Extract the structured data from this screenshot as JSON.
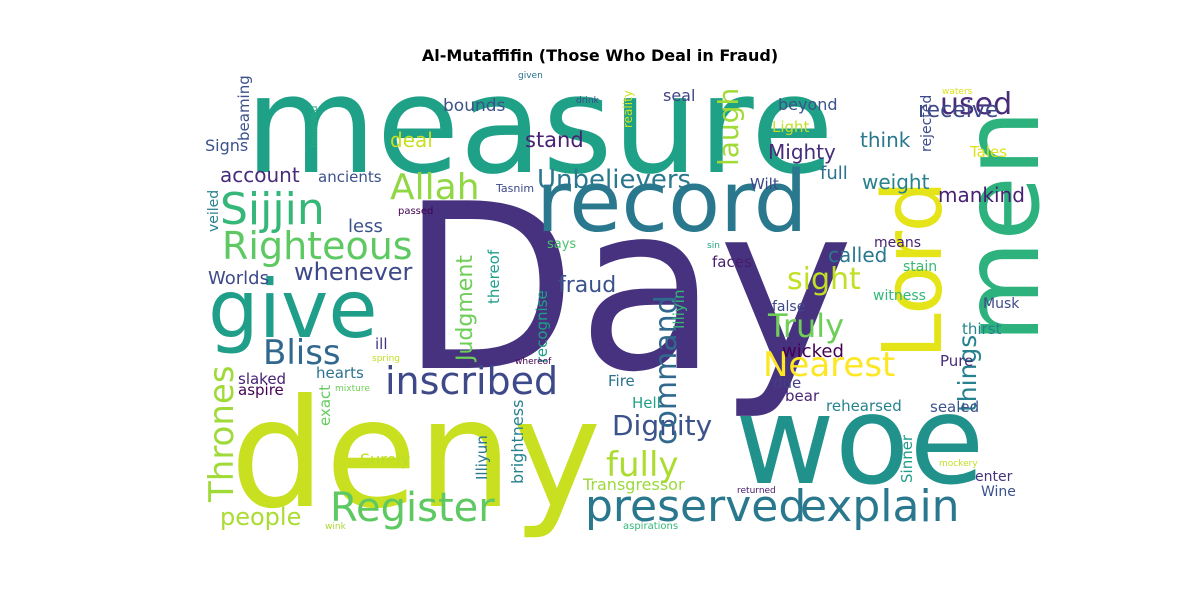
{
  "title": "Al-Mutaffifin (Those Who Deal in Fraud)",
  "words": [
    {
      "t": "Day",
      "c": "#46327e"
    },
    {
      "t": "measure",
      "c": "#1fa187"
    },
    {
      "t": "deny",
      "c": "#c8e020"
    },
    {
      "t": "woe",
      "c": "#21918c"
    },
    {
      "t": "record",
      "c": "#2a788e"
    },
    {
      "t": "men",
      "c": "#2db27d"
    },
    {
      "t": "give",
      "c": "#1f9e89"
    },
    {
      "t": "Lord",
      "c": "#e5e419"
    },
    {
      "t": "preserved",
      "c": "#2a788e"
    },
    {
      "t": "explain",
      "c": "#2a788e"
    },
    {
      "t": "inscribed",
      "c": "#3e4989"
    },
    {
      "t": "Register",
      "c": "#5ec962"
    },
    {
      "t": "Sijjin",
      "c": "#35b779"
    },
    {
      "t": "Righteous",
      "c": "#5ec962"
    },
    {
      "t": "Allah",
      "c": "#90d743"
    },
    {
      "t": "Thrones",
      "c": "#a0da39"
    },
    {
      "t": "Bliss",
      "c": "#31688e"
    },
    {
      "t": "Nearest",
      "c": "#fde725"
    },
    {
      "t": "Truly",
      "c": "#6ece58"
    },
    {
      "t": "fully",
      "c": "#addc30"
    },
    {
      "t": "Dignity",
      "c": "#3b528b"
    },
    {
      "t": "command",
      "c": "#31688e"
    },
    {
      "t": "Unbelievers",
      "c": "#2a788e"
    },
    {
      "t": "used",
      "c": "#472c7a"
    },
    {
      "t": "laugh",
      "c": "#a2da37"
    },
    {
      "t": "things",
      "c": "#26828e"
    },
    {
      "t": "sight",
      "c": "#c0df25"
    },
    {
      "t": "whenever",
      "c": "#3e4989"
    },
    {
      "t": "Judgment",
      "c": "#6ece58"
    },
    {
      "t": "people",
      "c": "#aadc32"
    },
    {
      "t": "fraud",
      "c": "#3b528b"
    },
    {
      "t": "receive",
      "c": "#3e4989"
    },
    {
      "t": "stand",
      "c": "#482173"
    },
    {
      "t": "deal",
      "c": "#c8e020"
    },
    {
      "t": "account",
      "c": "#472c7a"
    },
    {
      "t": "Mighty",
      "c": "#472c7a"
    },
    {
      "t": "weight",
      "c": "#26828e"
    },
    {
      "t": "think",
      "c": "#2a788e"
    },
    {
      "t": "mankind",
      "c": "#482173"
    },
    {
      "t": "called",
      "c": "#2a788e"
    },
    {
      "t": "full",
      "c": "#2c728e"
    },
    {
      "t": "wicked",
      "c": "#440154"
    },
    {
      "t": "Worlds",
      "c": "#3e4989"
    },
    {
      "t": "less",
      "c": "#3b528b"
    },
    {
      "t": "bounds",
      "c": "#3b528b"
    },
    {
      "t": "beyond",
      "c": "#3b528b"
    },
    {
      "t": "seal",
      "c": "#414487"
    },
    {
      "t": "Surely",
      "c": "#bddf26"
    },
    {
      "t": "Transgressor",
      "c": "#9bd93c"
    },
    {
      "t": "Signs",
      "c": "#3b528b"
    },
    {
      "t": "ancients",
      "c": "#3b528b"
    },
    {
      "t": "Tales",
      "c": "#dde318"
    },
    {
      "t": "Light",
      "c": "#c2df23"
    },
    {
      "t": "slaked",
      "c": "#482173"
    },
    {
      "t": "aspire",
      "c": "#440154"
    },
    {
      "t": "hearts",
      "c": "#2c728e"
    },
    {
      "t": "ill",
      "c": "#46337e"
    },
    {
      "t": "exact",
      "c": "#65cb5e"
    },
    {
      "t": "brightness",
      "c": "#26828e"
    },
    {
      "t": "Illiyun",
      "c": "#2a788e"
    },
    {
      "t": "Illiyin",
      "c": "#35b779"
    },
    {
      "t": "recognise",
      "c": "#1fa187"
    },
    {
      "t": "thereof",
      "c": "#1f9e89"
    },
    {
      "t": "Fire",
      "c": "#2c728e"
    },
    {
      "t": "Hell",
      "c": "#1fa187"
    },
    {
      "t": "bear",
      "c": "#482576"
    },
    {
      "t": "rehearsed",
      "c": "#25838e"
    },
    {
      "t": "due",
      "c": "#433e85"
    },
    {
      "t": "sealed",
      "c": "#3b528b"
    },
    {
      "t": "Pure",
      "c": "#472d7b"
    },
    {
      "t": "thirst",
      "c": "#25838e"
    },
    {
      "t": "Musk",
      "c": "#3e4989"
    },
    {
      "t": "witness",
      "c": "#35b779"
    },
    {
      "t": "stain",
      "c": "#37b878"
    },
    {
      "t": "means",
      "c": "#482173"
    },
    {
      "t": "false",
      "c": "#3e4989"
    },
    {
      "t": "faces",
      "c": "#481b6d"
    },
    {
      "t": "Wilt",
      "c": "#3e4989"
    },
    {
      "t": "rejected",
      "c": "#3e4989"
    },
    {
      "t": "veiled",
      "c": "#26828e"
    },
    {
      "t": "beaming",
      "c": "#3b528b"
    },
    {
      "t": "believed",
      "c": "#25ac82"
    },
    {
      "t": "given",
      "c": "#2c728e"
    },
    {
      "t": "drink",
      "c": "#3e4989"
    },
    {
      "t": "reality",
      "c": "#d2e21b"
    },
    {
      "t": "Tasnim",
      "c": "#3e4989"
    },
    {
      "t": "passed",
      "c": "#440154"
    },
    {
      "t": "says",
      "c": "#4ac16d"
    },
    {
      "t": "sin",
      "c": "#22a884"
    },
    {
      "t": "spring",
      "c": "#c2df23"
    },
    {
      "t": "mixture",
      "c": "#6ece58"
    },
    {
      "t": "whereof",
      "c": "#440154"
    },
    {
      "t": "wink",
      "c": "#aadc32"
    },
    {
      "t": "aspirations",
      "c": "#35b779"
    },
    {
      "t": "returned",
      "c": "#481b6d"
    },
    {
      "t": "mockery",
      "c": "#c2df23"
    },
    {
      "t": "waters",
      "c": "#dde318"
    },
    {
      "t": "Sinner",
      "c": "#1f9e89"
    },
    {
      "t": "enter",
      "c": "#46337e"
    },
    {
      "t": "Wine",
      "c": "#3b528b"
    }
  ]
}
